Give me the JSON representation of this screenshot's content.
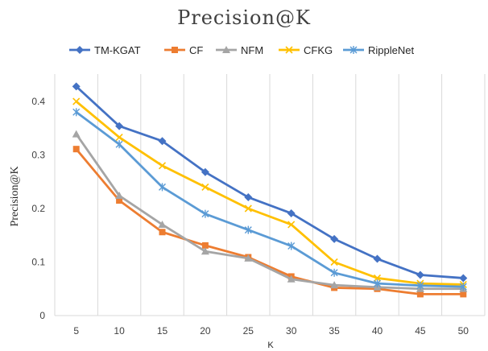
{
  "chart_data": {
    "type": "line",
    "title": "Precision@K",
    "xlabel": "K",
    "ylabel": "Precision@K",
    "categories": [
      "5",
      "10",
      "15",
      "20",
      "25",
      "30",
      "35",
      "40",
      "45",
      "50"
    ],
    "ylim": [
      0,
      0.4
    ],
    "yticks": [
      "0",
      "0.1",
      "0.2",
      "0.3",
      "0.4"
    ],
    "ytick_values": [
      0,
      0.1,
      0.2,
      0.3,
      0.4
    ],
    "grid": "vertical",
    "legend_position": "top",
    "series": [
      {
        "name": "TM-KGAT",
        "color": "#4472C4",
        "marker": "diamond",
        "values": [
          0.428,
          0.354,
          0.326,
          0.268,
          0.221,
          0.191,
          0.143,
          0.106,
          0.076,
          0.07
        ]
      },
      {
        "name": "CF",
        "color": "#ED7D31",
        "marker": "square",
        "values": [
          0.311,
          0.215,
          0.156,
          0.131,
          0.109,
          0.073,
          0.052,
          0.05,
          0.04,
          0.04
        ]
      },
      {
        "name": "NFM",
        "color": "#A5A5A5",
        "marker": "triangle",
        "values": [
          0.339,
          0.224,
          0.17,
          0.12,
          0.107,
          0.068,
          0.057,
          0.053,
          0.05,
          0.05
        ]
      },
      {
        "name": "CFKG",
        "color": "#FFC000",
        "marker": "x",
        "values": [
          0.4,
          0.333,
          0.28,
          0.24,
          0.2,
          0.17,
          0.1,
          0.07,
          0.06,
          0.058
        ]
      },
      {
        "name": "RippleNet",
        "color": "#5B9BD5",
        "marker": "asterisk",
        "values": [
          0.38,
          0.32,
          0.24,
          0.19,
          0.16,
          0.13,
          0.08,
          0.06,
          0.056,
          0.054
        ]
      }
    ]
  }
}
